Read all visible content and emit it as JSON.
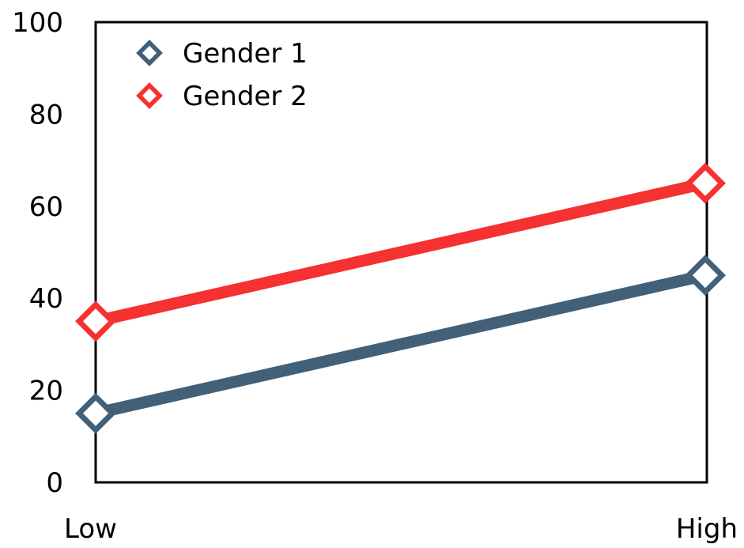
{
  "chart_data": {
    "type": "line",
    "categories": [
      "Low",
      "High"
    ],
    "series": [
      {
        "name": "Gender 1",
        "values": [
          15,
          45
        ],
        "color": "#436079"
      },
      {
        "name": "Gender 2",
        "values": [
          35,
          65
        ],
        "color": "#f53131"
      }
    ],
    "ylim": [
      0,
      100
    ],
    "yticks": [
      "0",
      "20",
      "40",
      "60",
      "80",
      "100"
    ],
    "title": "",
    "xlabel": "",
    "ylabel": "",
    "grid": false,
    "legend": "top-left",
    "marker": "diamond-hollow"
  }
}
